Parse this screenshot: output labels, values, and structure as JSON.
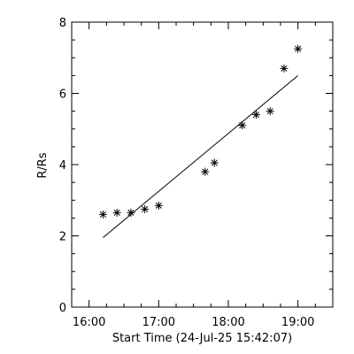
{
  "chart_data": {
    "type": "scatter",
    "title": "",
    "xlabel": "Start Time (24-Jul-25 15:42:07)",
    "ylabel": "R/Rs",
    "x_ticks": [
      "16:00",
      "17:00",
      "18:00",
      "19:00"
    ],
    "x_tick_minutes": [
      960,
      1020,
      1080,
      1140
    ],
    "xlim_minutes": [
      945,
      1170
    ],
    "y_ticks": [
      "0",
      "2",
      "4",
      "6",
      "8"
    ],
    "ylim": [
      0,
      8
    ],
    "grid": false,
    "legend": "none",
    "series": [
      {
        "marker": "asterisk",
        "x": [
          "16:12",
          "16:24",
          "16:36",
          "16:48",
          "17:00",
          "17:40",
          "17:48",
          "18:12",
          "18:24",
          "18:36",
          "18:48",
          "19:00"
        ],
        "y": [
          2.6,
          2.65,
          2.65,
          2.75,
          2.85,
          3.8,
          4.05,
          5.1,
          5.4,
          5.5,
          6.7,
          7.25
        ]
      }
    ],
    "fit_line": {
      "x": [
        "16:12",
        "19:00"
      ],
      "y": [
        1.95,
        6.5
      ]
    }
  }
}
